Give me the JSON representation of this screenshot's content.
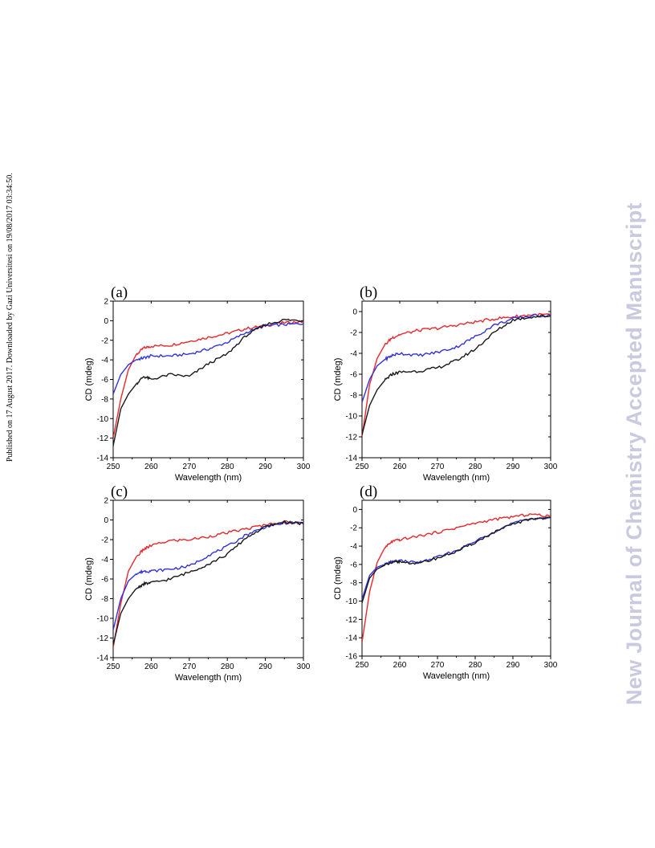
{
  "side_note_left": "Published on 17 August 2017. Downloaded by Gazi Universitesi on 19/08/2017 03:34:50.",
  "side_note_right": "New Journal of Chemistry Accepted Manuscript",
  "colors": {
    "red": "#e8282d",
    "blue": "#3232dc",
    "black": "#1a1a1a"
  },
  "chart_data": [
    {
      "type": "line",
      "panel_label": "(a)",
      "xlabel": "Wavelength (nm)",
      "ylabel": "CD (mdeg)",
      "xlim": [
        250,
        300
      ],
      "ylim": [
        -14,
        2
      ],
      "xticks": [
        250,
        260,
        270,
        280,
        290,
        300
      ],
      "yticks": [
        2,
        0,
        -2,
        -4,
        -6,
        -8,
        -10,
        -12,
        -14
      ],
      "grid": false,
      "x": [
        250,
        252,
        254,
        256,
        258,
        260,
        265,
        270,
        275,
        280,
        285,
        290,
        295,
        300
      ],
      "series": [
        {
          "color": "red",
          "values": [
            -12.0,
            -8.0,
            -5.0,
            -3.5,
            -2.8,
            -2.6,
            -2.5,
            -2.1,
            -1.7,
            -1.3,
            -0.8,
            -0.5,
            -0.2,
            -0.1
          ]
        },
        {
          "color": "blue",
          "values": [
            -7.5,
            -5.5,
            -4.5,
            -4.0,
            -3.8,
            -3.6,
            -3.6,
            -3.4,
            -2.9,
            -2.2,
            -1.2,
            -0.5,
            -0.4,
            -0.3
          ]
        },
        {
          "color": "black",
          "values": [
            -12.8,
            -9.0,
            -7.5,
            -6.5,
            -5.7,
            -6.0,
            -5.5,
            -5.7,
            -4.4,
            -3.4,
            -1.5,
            -0.4,
            0.1,
            0.0
          ]
        }
      ]
    },
    {
      "type": "line",
      "panel_label": "(b)",
      "xlabel": "Wavelength (nm)",
      "ylabel": "CD (mdeg)",
      "xlim": [
        250,
        300
      ],
      "ylim": [
        -14,
        1
      ],
      "xticks": [
        250,
        260,
        270,
        280,
        290,
        300
      ],
      "yticks": [
        0,
        -2,
        -4,
        -6,
        -8,
        -10,
        -12,
        -14
      ],
      "grid": false,
      "x": [
        250,
        252,
        254,
        256,
        258,
        260,
        265,
        270,
        275,
        280,
        285,
        290,
        295,
        300
      ],
      "series": [
        {
          "color": "red",
          "values": [
            -12.0,
            -7.0,
            -4.5,
            -3.2,
            -2.5,
            -2.2,
            -1.8,
            -1.6,
            -1.3,
            -1.0,
            -0.7,
            -0.5,
            -0.3,
            -0.3
          ]
        },
        {
          "color": "blue",
          "values": [
            -8.7,
            -6.5,
            -5.2,
            -4.6,
            -4.2,
            -4.0,
            -4.2,
            -3.9,
            -3.4,
            -2.4,
            -1.3,
            -0.7,
            -0.4,
            -0.4
          ]
        },
        {
          "color": "black",
          "values": [
            -11.8,
            -9.0,
            -7.5,
            -6.6,
            -6.0,
            -5.8,
            -5.7,
            -5.4,
            -4.7,
            -3.6,
            -2.0,
            -0.8,
            -0.5,
            -0.4
          ]
        }
      ]
    },
    {
      "type": "line",
      "panel_label": "(c)",
      "xlabel": "Wavelength (nm)",
      "ylabel": "CD (mdeg)",
      "xlim": [
        250,
        300
      ],
      "ylim": [
        -14,
        2
      ],
      "xticks": [
        250,
        260,
        270,
        280,
        290,
        300
      ],
      "yticks": [
        2,
        0,
        -2,
        -4,
        -6,
        -8,
        -10,
        -12,
        -14
      ],
      "grid": false,
      "x": [
        250,
        252,
        254,
        256,
        258,
        260,
        265,
        270,
        275,
        280,
        285,
        290,
        295,
        300
      ],
      "series": [
        {
          "color": "red",
          "values": [
            -13.0,
            -8.5,
            -5.2,
            -3.8,
            -3.0,
            -2.6,
            -2.1,
            -2.0,
            -1.7,
            -1.3,
            -0.9,
            -0.5,
            -0.2,
            -0.3
          ]
        },
        {
          "color": "blue",
          "values": [
            -11.2,
            -8.0,
            -6.2,
            -5.5,
            -5.2,
            -5.2,
            -5.0,
            -4.7,
            -3.6,
            -2.7,
            -1.5,
            -0.7,
            -0.3,
            -0.3
          ]
        },
        {
          "color": "black",
          "values": [
            -12.7,
            -9.5,
            -8.0,
            -7.0,
            -6.5,
            -6.4,
            -6.0,
            -5.3,
            -4.5,
            -3.5,
            -1.8,
            -0.7,
            -0.2,
            -0.4
          ]
        }
      ]
    },
    {
      "type": "line",
      "panel_label": "(d)",
      "xlabel": "Wavelength (nm)",
      "ylabel": "CD (mdeg)",
      "xlim": [
        250,
        300
      ],
      "ylim": [
        -16,
        1
      ],
      "xticks": [
        250,
        260,
        270,
        280,
        290,
        300
      ],
      "yticks": [
        0,
        -2,
        -4,
        -6,
        -8,
        -10,
        -12,
        -14,
        -16
      ],
      "grid": false,
      "x": [
        250,
        252,
        254,
        256,
        258,
        260,
        265,
        270,
        275,
        280,
        285,
        290,
        295,
        300
      ],
      "series": [
        {
          "color": "red",
          "values": [
            -14.5,
            -9.0,
            -5.8,
            -4.2,
            -3.5,
            -3.3,
            -2.9,
            -2.5,
            -2.0,
            -1.5,
            -1.1,
            -0.8,
            -0.5,
            -0.8
          ]
        },
        {
          "color": "blue",
          "values": [
            -9.8,
            -7.2,
            -6.3,
            -6.0,
            -5.7,
            -5.6,
            -5.8,
            -5.2,
            -4.5,
            -3.5,
            -2.4,
            -1.5,
            -1.0,
            -0.9
          ]
        },
        {
          "color": "black",
          "values": [
            -10.2,
            -7.5,
            -6.5,
            -6.1,
            -5.8,
            -5.7,
            -5.9,
            -5.3,
            -4.6,
            -3.6,
            -2.5,
            -1.6,
            -1.0,
            -0.9
          ]
        }
      ]
    }
  ]
}
